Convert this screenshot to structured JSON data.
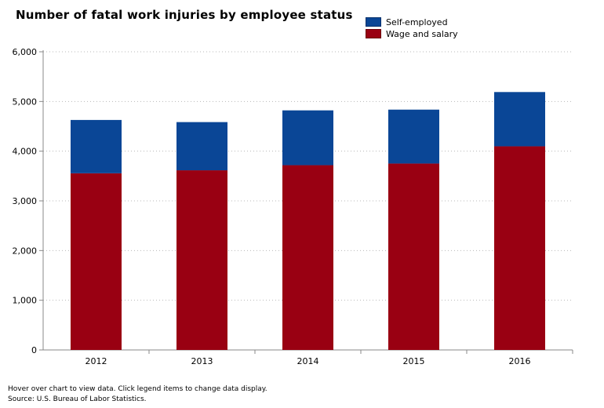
{
  "chart_data": {
    "type": "bar",
    "stacked": true,
    "title": "Number of fatal work injuries by employee status",
    "categories": [
      "2012",
      "2013",
      "2014",
      "2015",
      "2016"
    ],
    "series": [
      {
        "name": "Wage and salary",
        "color": "#990012",
        "values": [
          3555,
          3615,
          3718,
          3751,
          4098
        ]
      },
      {
        "name": "Self-employed",
        "color": "#0a4696",
        "values": [
          1073,
          970,
          1103,
          1085,
          1092
        ]
      }
    ],
    "y_ticks": [
      "0",
      "1,000",
      "2,000",
      "3,000",
      "4,000",
      "5,000",
      "6,000"
    ],
    "ylim": [
      0,
      6000
    ],
    "grid": true,
    "legend_position": "top-right"
  },
  "footer": {
    "note": "Hover over chart to view data. Click legend items to change data display.",
    "source": "Source: U.S. Bureau of Labor Statistics."
  }
}
